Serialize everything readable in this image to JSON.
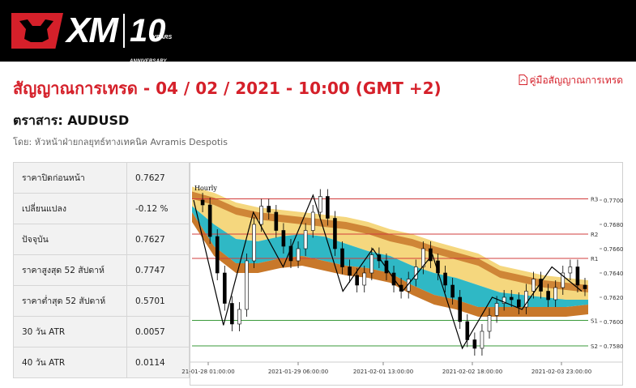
{
  "header": {
    "brand": "XM",
    "anniversary_number": "10",
    "anniversary_years": "YEARS",
    "anniversary_label": "ANNIVERSARY"
  },
  "page": {
    "title": "สัญญาณการเทรด - 04 / 02 / 2021 - 10:00 (GMT +2)",
    "guide_link": "คู่มือสัญญาณการเทรด",
    "instrument": "ตราสาร: AUDUSD",
    "byline": "โดย: หัวหน้าฝ่ายกลยุทธ์ทางเทคนิค Avramis Despotis"
  },
  "stats": [
    {
      "label": "ราคาปิดก่อนหน้า",
      "value": "0.7627"
    },
    {
      "label": "เปลี่ยนแปลง",
      "value": "-0.12 %"
    },
    {
      "label": "ปัจจุบัน",
      "value": "0.7627"
    },
    {
      "label": "ราคาสูงสุด 52 สัปดาห์",
      "value": "0.7747"
    },
    {
      "label": "ราคาต่ำสุด 52 สัปดาห์",
      "value": "0.5701"
    },
    {
      "label": "30 วัน ATR",
      "value": "0.0057"
    },
    {
      "label": "40 วัน ATR",
      "value": "0.0114"
    }
  ],
  "chart_data": {
    "type": "line",
    "title": "Hourly",
    "x_ticks": [
      "21-01-28 01:00:00",
      "2021-01-29 06:00:00",
      "2021-02-01 13:00:00",
      "2021-02-02 18:00:00",
      "2021-02-03 23:00:00"
    ],
    "y_ticks": [
      "0.7700",
      "0.7680",
      "0.7660",
      "0.7640",
      "0.7620",
      "0.7600",
      "0.7580"
    ],
    "ylim": [
      0.7572,
      0.7712
    ],
    "levels": [
      {
        "name": "R3",
        "value": 0.7701,
        "color": "#d23c3c"
      },
      {
        "name": "R2",
        "value": 0.7672,
        "color": "#d23c3c"
      },
      {
        "name": "R1",
        "value": 0.7652,
        "color": "#d23c3c"
      },
      {
        "name": "S1",
        "value": 0.7601,
        "color": "#3a9a3a"
      },
      {
        "name": "S2",
        "value": 0.758,
        "color": "#3a9a3a"
      }
    ],
    "price_path": [
      0.77,
      0.7696,
      0.767,
      0.764,
      0.7615,
      0.7598,
      0.761,
      0.765,
      0.768,
      0.7695,
      0.769,
      0.7675,
      0.7662,
      0.765,
      0.766,
      0.7675,
      0.769,
      0.7703,
      0.7685,
      0.766,
      0.7645,
      0.7638,
      0.763,
      0.764,
      0.7655,
      0.765,
      0.764,
      0.763,
      0.7625,
      0.7635,
      0.7645,
      0.766,
      0.765,
      0.764,
      0.763,
      0.762,
      0.76,
      0.7585,
      0.7578,
      0.7592,
      0.7605,
      0.7615,
      0.762,
      0.7618,
      0.7612,
      0.7625,
      0.7635,
      0.7625,
      0.7618,
      0.7628,
      0.764,
      0.7645,
      0.763,
      0.7627
    ],
    "zigzag": [
      0.77,
      0.7597,
      0.769,
      0.7645,
      0.7704,
      0.7625,
      0.766,
      0.7625,
      0.7655,
      0.7578,
      0.762,
      0.761,
      0.7645,
      0.7625
    ],
    "cloud_upper": [
      0.7705,
      0.77,
      0.7692,
      0.7688,
      0.7686,
      0.7684,
      0.7682,
      0.768,
      0.7676,
      0.767,
      0.7666,
      0.766,
      0.7655,
      0.765,
      0.764,
      0.7636,
      0.7632,
      0.763,
      0.7628
    ],
    "cloud_mid": [
      0.7695,
      0.768,
      0.7668,
      0.7666,
      0.767,
      0.7672,
      0.767,
      0.7664,
      0.7658,
      0.7654,
      0.7646,
      0.764,
      0.7636,
      0.763,
      0.7624,
      0.7622,
      0.762,
      0.7618,
      0.7618
    ],
    "cloud_lower": [
      0.769,
      0.7662,
      0.7648,
      0.7648,
      0.7652,
      0.7654,
      0.765,
      0.7646,
      0.7644,
      0.764,
      0.763,
      0.7622,
      0.7618,
      0.7612,
      0.7612,
      0.7612,
      0.7612,
      0.7612,
      0.7614
    ],
    "cloud_colors": {
      "orange": "#c8782a",
      "light": "#f5d77e",
      "teal": "#2fb8c5"
    }
  },
  "colors": {
    "brand_red": "#d5202a",
    "table_bg": "#f2f2f2"
  }
}
